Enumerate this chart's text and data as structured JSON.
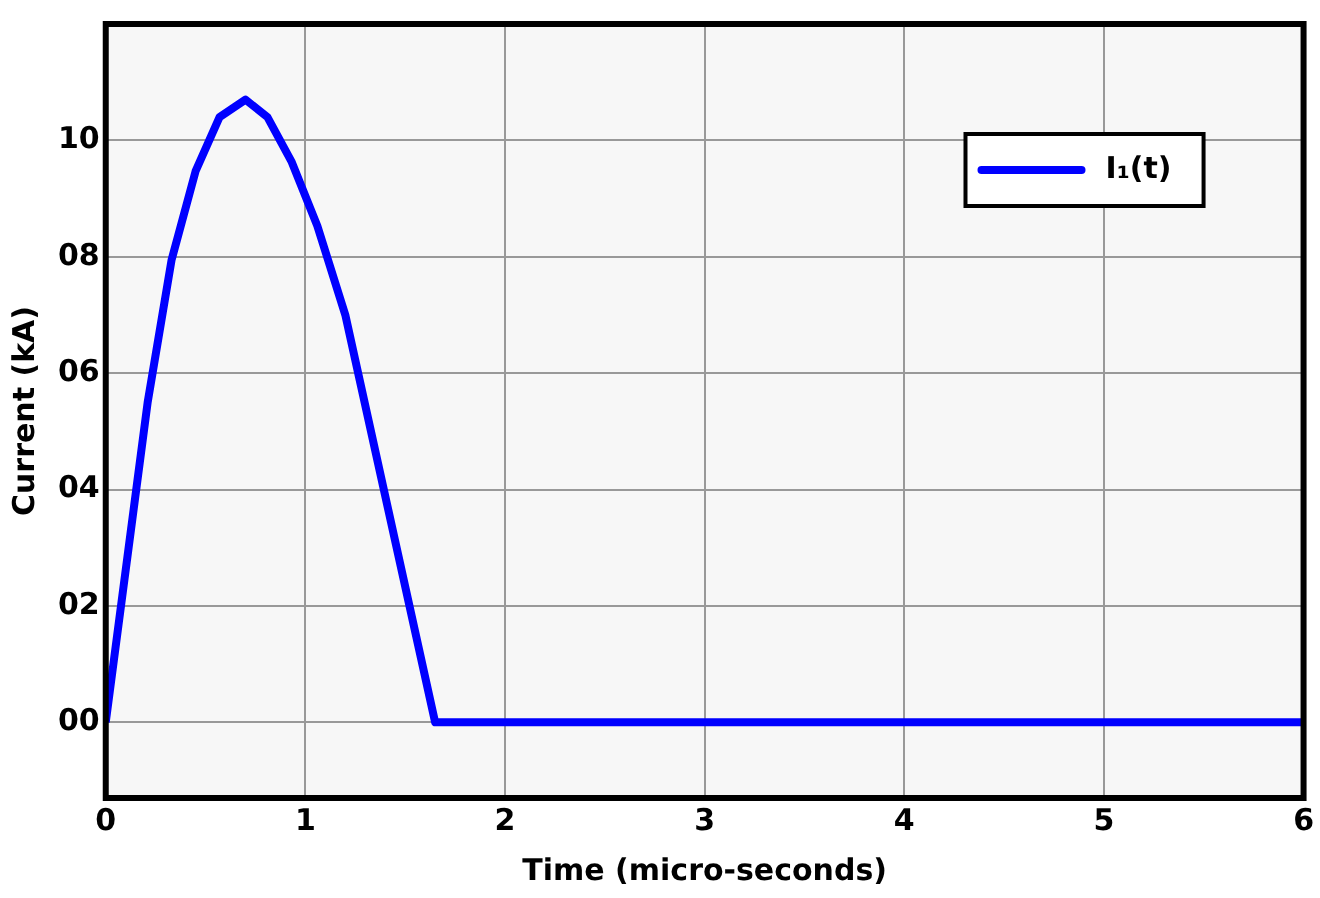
{
  "chart_data": {
    "type": "line",
    "xlabel": "Time (micro-seconds)",
    "ylabel": "Current (kA)",
    "x": [
      0,
      0.21,
      0.33,
      0.45,
      0.57,
      0.7,
      0.81,
      0.93,
      1.06,
      1.2,
      1.65,
      2,
      3,
      4,
      5,
      6
    ],
    "series": [
      {
        "name": "I₁(t)",
        "color": "#0000ff",
        "values": [
          0,
          5.5,
          7.95,
          9.47,
          10.4,
          10.7,
          10.4,
          9.64,
          8.53,
          7.0,
          0,
          0,
          0,
          0,
          0,
          0
        ]
      }
    ],
    "xlim": [
      0,
      6
    ],
    "xticks": [
      0,
      1,
      2,
      3,
      4,
      5,
      6
    ],
    "ylim": [
      -1.3,
      12
    ],
    "yticks": [
      {
        "value": 0,
        "label": "00"
      },
      {
        "value": 2,
        "label": "02"
      },
      {
        "value": 4,
        "label": "04"
      },
      {
        "value": 6,
        "label": "06"
      },
      {
        "value": 8,
        "label": "08"
      },
      {
        "value": 10,
        "label": "10"
      }
    ],
    "grid": true,
    "legend": "top right",
    "marker": "none",
    "line_style": "solid"
  }
}
